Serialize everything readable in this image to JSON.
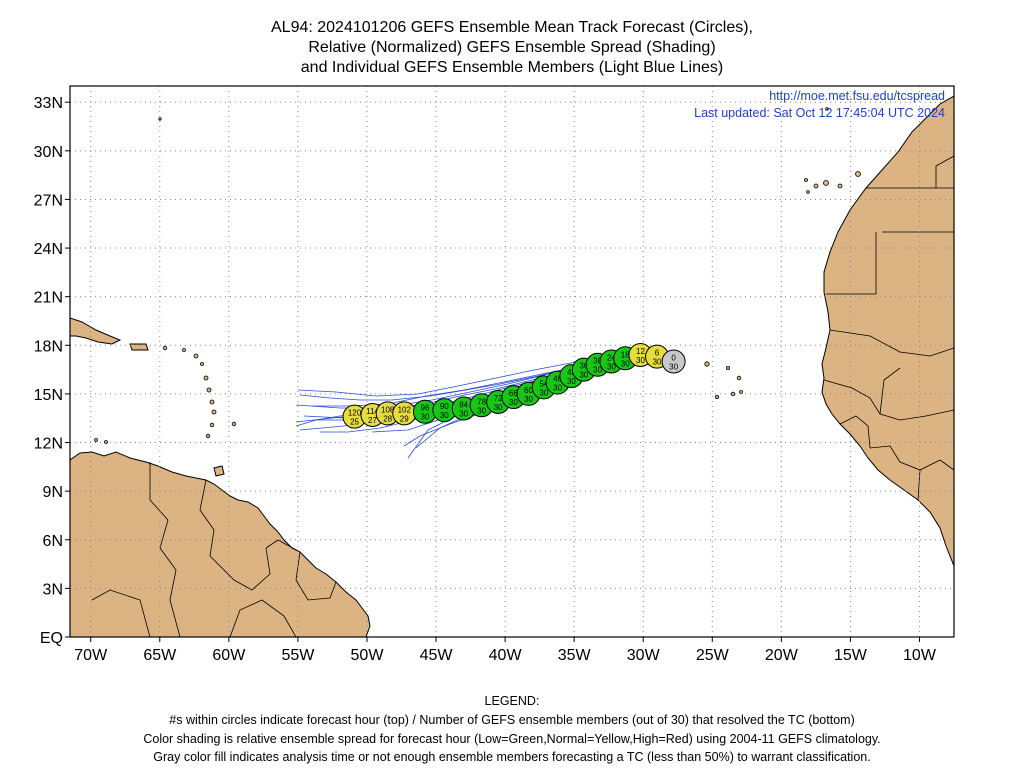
{
  "title": {
    "line1": "AL94: 2024101206 GEFS Ensemble Mean Track Forecast (Circles),",
    "line2": "Relative (Normalized) GEFS Ensemble Spread (Shading)",
    "line3": "and Individual GEFS Ensemble Members (Light Blue Lines)"
  },
  "info": {
    "url": "http://moe.met.fsu.edu/tcspread",
    "updated": "Last updated: Sat Oct 12 17:45:04 UTC 2024"
  },
  "axes": {
    "lat_labels": [
      {
        "lat": 33,
        "text": "33N"
      },
      {
        "lat": 30,
        "text": "30N"
      },
      {
        "lat": 27,
        "text": "27N"
      },
      {
        "lat": 24,
        "text": "24N"
      },
      {
        "lat": 21,
        "text": "21N"
      },
      {
        "lat": 18,
        "text": "18N"
      },
      {
        "lat": 15,
        "text": "15N"
      },
      {
        "lat": 12,
        "text": "12N"
      },
      {
        "lat": 9,
        "text": "9N"
      },
      {
        "lat": 6,
        "text": "6N"
      },
      {
        "lat": 3,
        "text": "3N"
      },
      {
        "lat": 0,
        "text": "EQ"
      }
    ],
    "lon_labels": [
      {
        "lon": -70,
        "text": "70W"
      },
      {
        "lon": -65,
        "text": "65W"
      },
      {
        "lon": -60,
        "text": "60W"
      },
      {
        "lon": -55,
        "text": "55W"
      },
      {
        "lon": -50,
        "text": "50W"
      },
      {
        "lon": -45,
        "text": "45W"
      },
      {
        "lon": -40,
        "text": "40W"
      },
      {
        "lon": -35,
        "text": "35W"
      },
      {
        "lon": -30,
        "text": "30W"
      },
      {
        "lon": -25,
        "text": "25W"
      },
      {
        "lon": -20,
        "text": "20W"
      },
      {
        "lon": -15,
        "text": "15W"
      },
      {
        "lon": -10,
        "text": "10W"
      }
    ],
    "lon_range": [
      -71.5,
      -7.5
    ],
    "lat_range": [
      0,
      34
    ],
    "grid": "dotted"
  },
  "colors": {
    "land": "#dcb483",
    "ocean": "#ffffff",
    "member_lines": "#2a4bd8",
    "low_spread": "#14c814",
    "normal_spread": "#e6dc3c",
    "gray": "#c8c8c8"
  },
  "mean_track": [
    {
      "hour": "0",
      "members": "30",
      "lon": -27.8,
      "lat": 17.0,
      "fill": "gray"
    },
    {
      "hour": "6",
      "members": "30",
      "lon": -29.0,
      "lat": 17.3,
      "fill": "yellow"
    },
    {
      "hour": "12",
      "members": "30",
      "lon": -30.2,
      "lat": 17.4,
      "fill": "yellow"
    },
    {
      "hour": "18",
      "members": "30",
      "lon": -31.3,
      "lat": 17.2,
      "fill": "green"
    },
    {
      "hour": "24",
      "members": "30",
      "lon": -32.3,
      "lat": 17.0,
      "fill": "green"
    },
    {
      "hour": "30",
      "members": "30",
      "lon": -33.3,
      "lat": 16.8,
      "fill": "green"
    },
    {
      "hour": "36",
      "members": "30",
      "lon": -34.3,
      "lat": 16.5,
      "fill": "green"
    },
    {
      "hour": "42",
      "members": "30",
      "lon": -35.2,
      "lat": 16.1,
      "fill": "green"
    },
    {
      "hour": "48",
      "members": "30",
      "lon": -36.2,
      "lat": 15.7,
      "fill": "green"
    },
    {
      "hour": "54",
      "members": "30",
      "lon": -37.2,
      "lat": 15.4,
      "fill": "green"
    },
    {
      "hour": "60",
      "members": "30",
      "lon": -38.3,
      "lat": 15.0,
      "fill": "green"
    },
    {
      "hour": "66",
      "members": "30",
      "lon": -39.4,
      "lat": 14.8,
      "fill": "green"
    },
    {
      "hour": "72",
      "members": "30",
      "lon": -40.5,
      "lat": 14.5,
      "fill": "green"
    },
    {
      "hour": "78",
      "members": "30",
      "lon": -41.7,
      "lat": 14.3,
      "fill": "green"
    },
    {
      "hour": "84",
      "members": "30",
      "lon": -43.0,
      "lat": 14.1,
      "fill": "green"
    },
    {
      "hour": "90",
      "members": "30",
      "lon": -44.4,
      "lat": 14.0,
      "fill": "green"
    },
    {
      "hour": "96",
      "members": "30",
      "lon": -45.8,
      "lat": 13.9,
      "fill": "green"
    },
    {
      "hour": "102",
      "members": "29",
      "lon": -47.3,
      "lat": 13.8,
      "fill": "yellow"
    },
    {
      "hour": "108",
      "members": "28",
      "lon": -48.5,
      "lat": 13.8,
      "fill": "yellow"
    },
    {
      "hour": "114",
      "members": "27",
      "lon": -49.6,
      "lat": 13.7,
      "fill": "yellow"
    },
    {
      "hour": "120",
      "members": "25",
      "lon": -50.9,
      "lat": 13.6,
      "fill": "yellow"
    }
  ],
  "legend": {
    "heading": "LEGEND:",
    "line1": "#s within circles indicate forecast hour (top) / Number of GEFS ensemble members (out of 30) that resolved the TC (bottom)",
    "line2": "Color shading is relative ensemble spread for forecast hour (Low=Green,Normal=Yellow,High=Red) using 2004-11 GEFS climatology.",
    "line3": "Gray color fill indicates analysis time or not enough ensemble members forecasting a TC (less than 50%) to warrant classification."
  }
}
